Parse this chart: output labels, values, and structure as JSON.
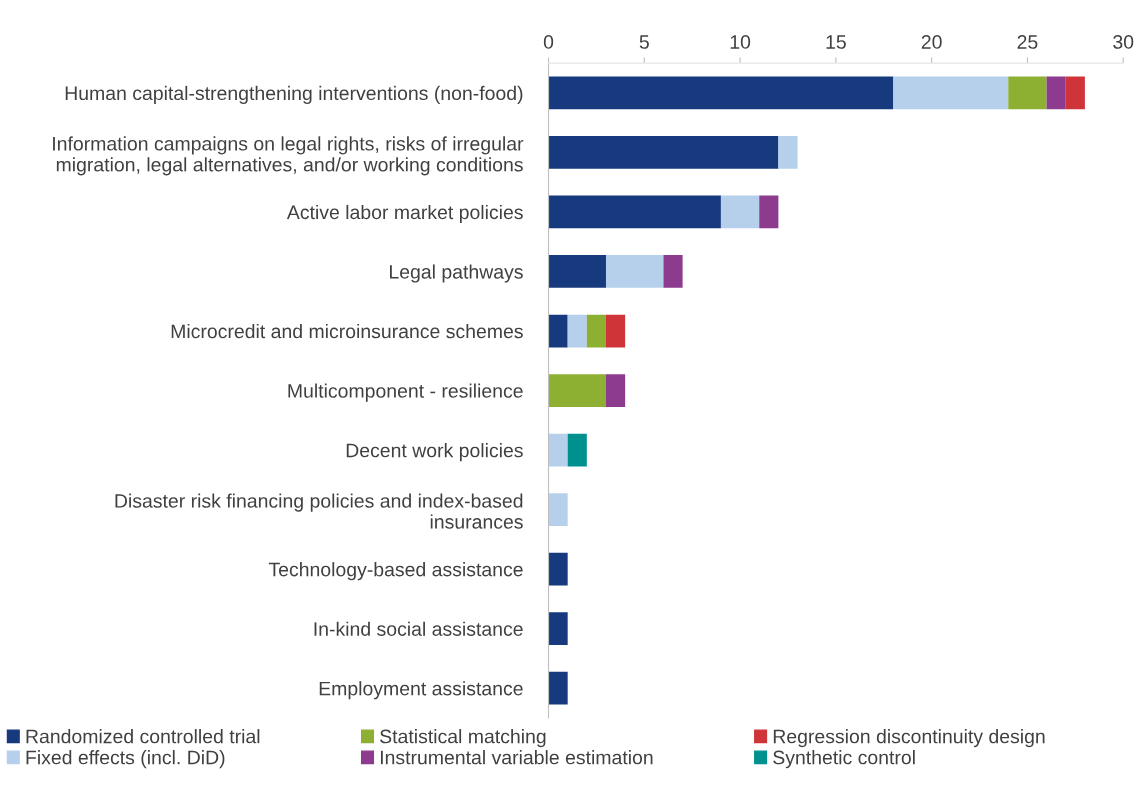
{
  "chart_data": {
    "type": "bar",
    "orientation": "horizontal",
    "stacked": true,
    "categories": [
      "Human capital-strengthening interventions (non-food)",
      "Information campaigns on legal rights, risks of irregular\nmigration, legal alternatives, and/or working conditions",
      "Active labor market policies",
      "Legal pathways",
      "Microcredit and microinsurance schemes",
      "Multicomponent - resilience",
      "Decent work policies",
      "Disaster risk financing policies and index-based\ninsurances",
      "Technology-based assistance",
      "In-kind social assistance",
      "Employment assistance"
    ],
    "series": [
      {
        "name": "Randomized controlled trial",
        "color": "#173a7e",
        "values": [
          18,
          12,
          9,
          3,
          1,
          null,
          null,
          null,
          1,
          1,
          1
        ]
      },
      {
        "name": "Fixed effects (incl. DiD)",
        "color": "#b6d0ec",
        "values": [
          6,
          1,
          2,
          3,
          1,
          null,
          1,
          1,
          null,
          null,
          null
        ]
      },
      {
        "name": "Statistical matching",
        "color": "#8db033",
        "values": [
          2,
          null,
          null,
          null,
          1,
          3,
          null,
          null,
          null,
          null,
          null
        ]
      },
      {
        "name": "Instrumental variable estimation",
        "color": "#8c3b8e",
        "values": [
          1,
          null,
          1,
          1,
          null,
          1,
          null,
          null,
          null,
          null,
          null
        ]
      },
      {
        "name": "Regression discontinuity design",
        "color": "#cf3438",
        "values": [
          1,
          null,
          null,
          null,
          1,
          null,
          null,
          null,
          null,
          null,
          null
        ]
      },
      {
        "name": "Synthetic control",
        "color": "#00918f",
        "values": [
          null,
          null,
          null,
          null,
          null,
          null,
          1,
          null,
          null,
          null,
          null
        ]
      }
    ],
    "xlim": [
      0,
      30
    ],
    "xticks": [
      0,
      5,
      10,
      15,
      20,
      25,
      30
    ],
    "grid": false,
    "legend": "bottom"
  }
}
